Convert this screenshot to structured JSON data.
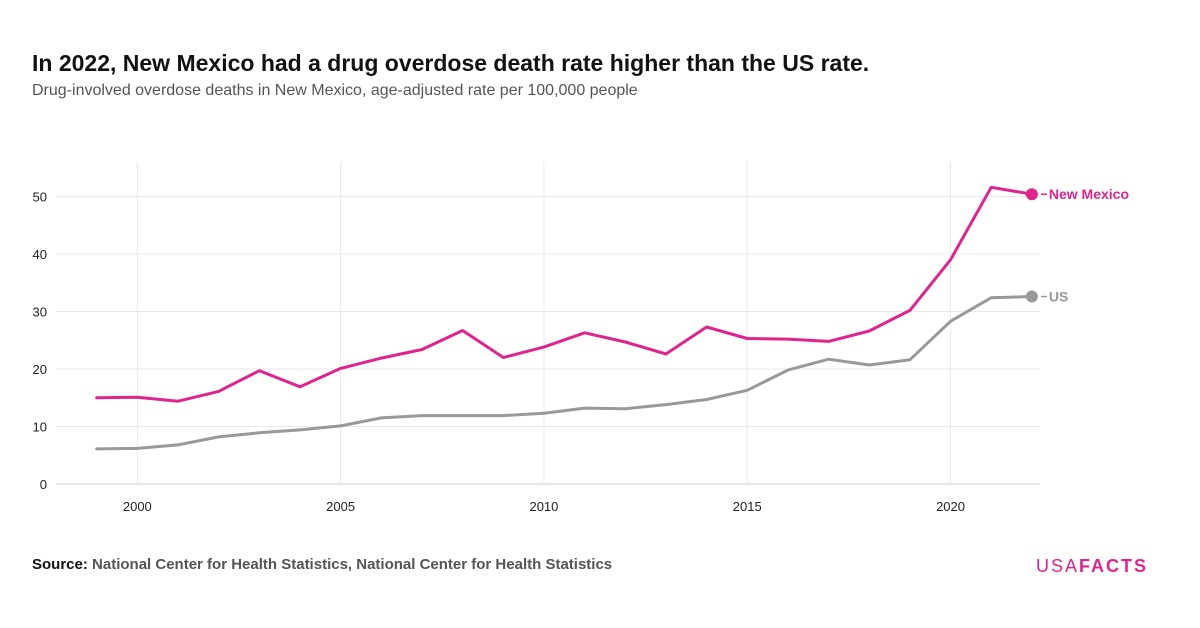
{
  "header": {
    "title": "In 2022, New Mexico had a drug overdose death rate higher than the US rate.",
    "subtitle": "Drug-involved overdose deaths in New Mexico, age-adjusted rate per 100,000 people"
  },
  "footer": {
    "source_label": "Source:",
    "source_text": "National Center for Health Statistics, National Center for Health Statistics",
    "logo_part1": "USA",
    "logo_part2": "FACTS"
  },
  "chart_data": {
    "type": "line",
    "x": [
      1999,
      2000,
      2001,
      2002,
      2003,
      2004,
      2005,
      2006,
      2007,
      2008,
      2009,
      2010,
      2011,
      2012,
      2013,
      2014,
      2015,
      2016,
      2017,
      2018,
      2019,
      2020,
      2021,
      2022
    ],
    "series": [
      {
        "name": "New Mexico",
        "color": "#e0248e",
        "values": [
          15.0,
          15.1,
          14.4,
          16.1,
          19.7,
          16.9,
          20.1,
          21.9,
          23.4,
          26.7,
          22.0,
          23.8,
          26.3,
          24.7,
          22.6,
          27.3,
          25.3,
          25.2,
          24.8,
          26.6,
          30.2,
          39.0,
          51.6,
          50.4
        ]
      },
      {
        "name": "US",
        "color": "#999999",
        "values": [
          6.1,
          6.2,
          6.8,
          8.2,
          8.9,
          9.4,
          10.1,
          11.5,
          11.9,
          11.9,
          11.9,
          12.3,
          13.2,
          13.1,
          13.8,
          14.7,
          16.3,
          19.8,
          21.7,
          20.7,
          21.6,
          28.3,
          32.4,
          32.6
        ]
      }
    ],
    "xlabel": "",
    "ylabel": "",
    "xlim": [
      1998,
      2022.2
    ],
    "ylim": [
      0,
      56
    ],
    "x_ticks": [
      2000,
      2005,
      2010,
      2015,
      2020
    ],
    "y_ticks": [
      0,
      10,
      20,
      30,
      40,
      50
    ],
    "grid": true,
    "legend": "end-labels"
  }
}
